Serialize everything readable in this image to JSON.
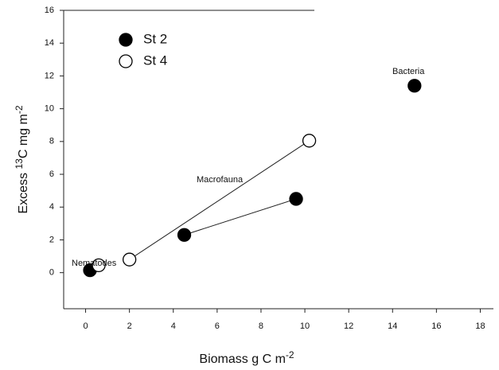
{
  "chart_data": {
    "type": "scatter",
    "xlabel": [
      "Biomass g C m",
      "-2"
    ],
    "ylabel": [
      "Excess ",
      "13",
      "C mg m",
      "-2"
    ],
    "xlim": [
      -1,
      18.6
    ],
    "ylim": [
      -2.2,
      16
    ],
    "xticks": [
      0,
      2,
      4,
      6,
      8,
      10,
      12,
      14,
      16,
      18
    ],
    "yticks": [
      0,
      2,
      4,
      6,
      8,
      10,
      12,
      14,
      16
    ],
    "series": [
      {
        "name": "St 2",
        "color": "#000000",
        "marker": "filled",
        "x": [
          0.2,
          4.5,
          9.6,
          15
        ],
        "values": [
          0.15,
          2.3,
          4.5,
          11.4
        ]
      },
      {
        "name": "St 4",
        "color": "#000000",
        "marker": "open",
        "x": [
          0.6,
          2,
          10.2
        ],
        "values": [
          0.45,
          0.8,
          8.05
        ]
      }
    ],
    "annotations": [
      "Nematodes",
      "Macrofauna",
      "Bacteria"
    ]
  }
}
